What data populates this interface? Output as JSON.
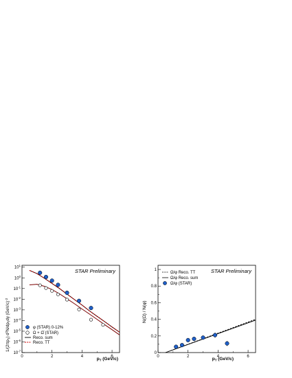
{
  "chart_data": [
    {
      "type": "scatter",
      "annotation": "STAR Preliminary",
      "xlabel": "p_T (GeV/c)",
      "ylabel": "1/(2πp_T) d²N/dp_T dy (GeV/c)⁻²",
      "xlim": [
        0,
        6.5
      ],
      "ylim": [
        1e-07,
        15
      ],
      "yscale": "log",
      "x_ticks": [
        0,
        2,
        4,
        6
      ],
      "y_tick_exponents": [
        -7,
        -6,
        -5,
        -4,
        -3,
        -2,
        -1,
        0,
        1
      ],
      "legend_position": "bottom-left",
      "series": [
        {
          "name": "φ (STAR) 0-12%",
          "marker": "filled-circle",
          "color": "#1f5fc8",
          "x": [
            1.2,
            1.6,
            2.0,
            2.4,
            3.0,
            3.8,
            4.6
          ],
          "y": [
            3.0,
            1.2,
            0.55,
            0.22,
            0.04,
            0.007,
            0.0015
          ]
        },
        {
          "name": "Ω + Ω̄ (STAR)",
          "marker": "open-circle",
          "color": "#000000",
          "x": [
            1.2,
            1.6,
            2.0,
            2.4,
            3.0,
            3.8,
            4.6,
            5.4
          ],
          "y": [
            0.2,
            0.11,
            0.06,
            0.028,
            0.009,
            0.0011,
            0.00012,
            4e-05
          ]
        },
        {
          "name": "Reco. sum",
          "line": "solid",
          "color": "#000000",
          "x": [
            0.5,
            1,
            1.5,
            2,
            2.5,
            3,
            3.5,
            4,
            4.5,
            5,
            5.5,
            6,
            6.5
          ],
          "y": [
            5,
            2.5,
            0.9,
            0.3,
            0.1,
            0.03,
            0.009,
            0.0028,
            0.0008,
            0.00025,
            8e-05,
            2.5e-05,
            8e-06
          ]
        },
        {
          "name": "Reco. TT",
          "line": "dashed",
          "color": "#cc0000",
          "x": [
            0.5,
            1,
            1.5,
            2,
            2.5,
            3,
            3.5,
            4,
            4.5,
            5,
            5.5,
            6,
            6.5
          ],
          "y": [
            5,
            2.5,
            0.9,
            0.3,
            0.1,
            0.03,
            0.009,
            0.0028,
            0.0008,
            0.00025,
            8e-05,
            2.5e-05,
            8e-06
          ]
        },
        {
          "name": "",
          "line": "solid",
          "color": "#7a0000",
          "x": [
            0.5,
            1,
            1.5,
            2,
            2.5,
            3,
            3.5,
            4,
            4.5,
            5,
            5.5,
            6,
            6.5
          ],
          "y": [
            0.22,
            0.25,
            0.16,
            0.08,
            0.032,
            0.011,
            0.0037,
            0.0012,
            0.0004,
            0.00013,
            4.2e-05,
            1.4e-05,
            4.5e-06
          ]
        }
      ]
    },
    {
      "type": "scatter",
      "annotation": "STAR Preliminary",
      "xlabel": "p_T (GeV/c)",
      "ylabel": "N(Ω) / N(φ)",
      "xlim": [
        0,
        6.5
      ],
      "ylim": [
        0,
        1.05
      ],
      "x_ticks": [
        0,
        2,
        4,
        6
      ],
      "y_ticks": [
        0,
        0.2,
        0.4,
        0.6,
        0.8,
        1
      ],
      "legend_position": "top-left",
      "series": [
        {
          "name": "Ω/φ Reco. TT",
          "line": "dashed",
          "color": "#000000",
          "x": [
            0.5,
            6.5
          ],
          "y": [
            0.0,
            0.4
          ]
        },
        {
          "name": "Ω/φ Reco. sum",
          "line": "solid",
          "color": "#000000",
          "x": [
            0.5,
            6.5
          ],
          "y": [
            0.0,
            0.39
          ]
        },
        {
          "name": "Ω/φ (STAR)",
          "marker": "filled-circle",
          "color": "#1f5fc8",
          "x": [
            1.2,
            1.6,
            2.0,
            2.4,
            3.0,
            3.8,
            4.6
          ],
          "y": [
            0.07,
            0.09,
            0.15,
            0.165,
            0.18,
            0.21,
            0.11
          ],
          "yerr": [
            0.01,
            0.01,
            0.015,
            0.015,
            0.02,
            0.03,
            0.03
          ]
        }
      ]
    }
  ]
}
